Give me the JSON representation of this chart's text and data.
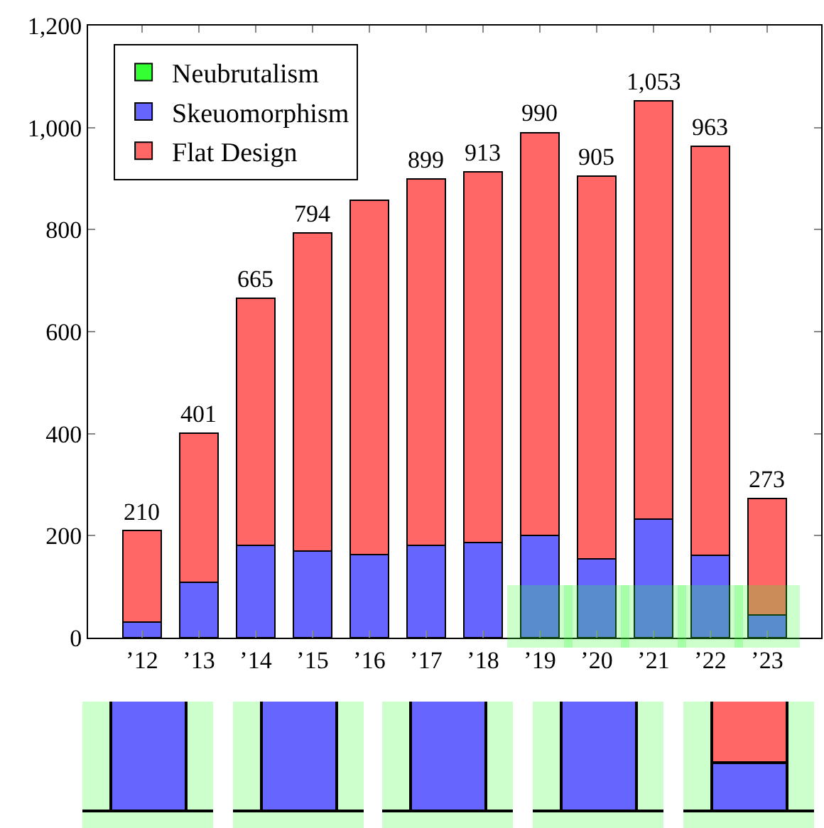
{
  "chart_data": {
    "type": "bar",
    "stacked": true,
    "categories": [
      "’12",
      "’13",
      "’14",
      "’15",
      "’16",
      "’17",
      "’18",
      "’19",
      "’20",
      "’21",
      "’22",
      "’23"
    ],
    "series": [
      {
        "name": "Neubrutalism",
        "color": "#33ff33",
        "values": [
          null,
          null,
          null,
          null,
          null,
          null,
          null,
          null,
          null,
          null,
          null,
          null
        ]
      },
      {
        "name": "Skeuomorphism",
        "color": "#6666ff",
        "values": [
          30,
          109,
          181,
          170,
          163,
          181,
          187,
          201,
          155,
          233,
          162,
          45
        ]
      },
      {
        "name": "Flat Design",
        "color": "#ff6666",
        "values": [
          180,
          292,
          484,
          624,
          695,
          718,
          726,
          789,
          750,
          820,
          801,
          228
        ]
      }
    ],
    "totals": [
      "210",
      "401",
      "665",
      "794",
      null,
      "899",
      "913",
      "990",
      "905",
      "1,053",
      "963",
      "273"
    ],
    "ylim": [
      0,
      1200
    ],
    "yticks": [
      0,
      200,
      400,
      600,
      800,
      {
        "value": 1000,
        "label": "1,000"
      },
      {
        "value": 1200,
        "label": "1,200"
      }
    ],
    "grid": false,
    "legend": "top left"
  }
}
